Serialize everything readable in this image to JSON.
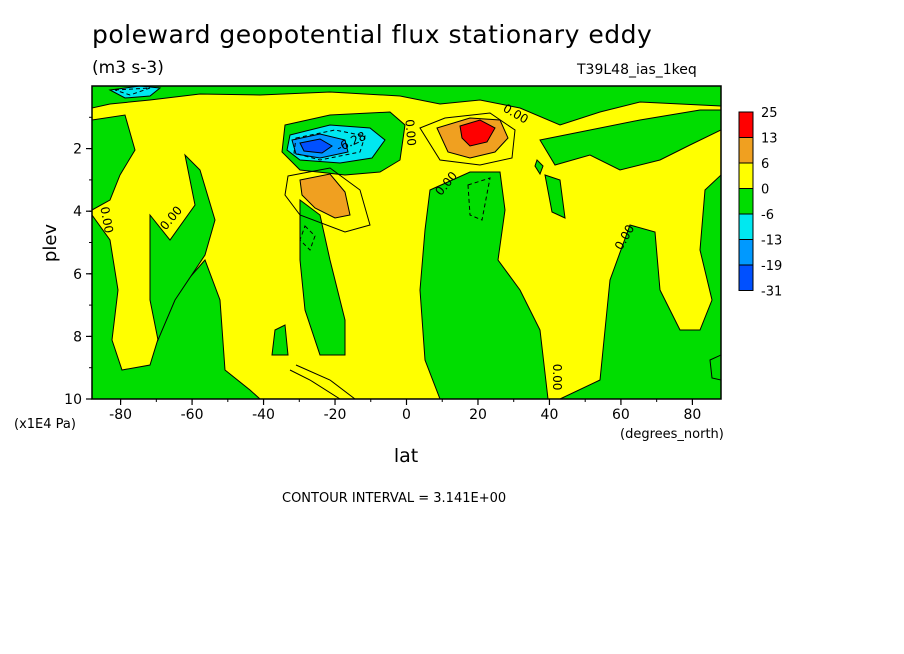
{
  "header": {
    "title": "poleward geopotential flux stationary eddy",
    "units": "(m3 s-3)",
    "dataset": "T39L48_ias_1keq"
  },
  "footer": {
    "contour_interval": "CONTOUR INTERVAL = 3.141E+00"
  },
  "colors": {
    "red": "#ff0000",
    "orange": "#f0a020",
    "yellow": "#ffff00",
    "green": "#00dd00",
    "cyan": "#00e8f0",
    "lightblue": "#0099ff",
    "blue": "#0050ff"
  },
  "chart_data": {
    "type": "heatmap",
    "title": "poleward geopotential flux stationary eddy",
    "xlabel": "lat",
    "x_unit_label": "(degrees_north)",
    "ylabel": "plev",
    "y_unit_label": "(x1E4 Pa)",
    "xlim": [
      -88,
      88
    ],
    "ylim": [
      0,
      10
    ],
    "y_inverted": true,
    "x_ticks": [
      -80,
      -60,
      -40,
      -20,
      0,
      20,
      40,
      60,
      80
    ],
    "y_ticks": [
      2,
      4,
      6,
      8,
      10
    ],
    "colorbar": {
      "levels": [
        "25",
        "13",
        "6",
        "0",
        "-6",
        "-13",
        "-19",
        "-31"
      ],
      "colors": [
        "#ff0000",
        "#f0a020",
        "#ffff00",
        "#00dd00",
        "#00e8f0",
        "#0099ff",
        "#0050ff"
      ]
    },
    "contour_labels": [
      {
        "text": "0.00",
        "lat": -85,
        "plev": 4.3,
        "angle": 80
      },
      {
        "text": "0.00",
        "lat": -65,
        "plev": 4.3,
        "angle": -50
      },
      {
        "text": "0.00",
        "lat": 0,
        "plev": 1.5,
        "angle": 85
      },
      {
        "text": "-6.28",
        "lat": -15,
        "plev": 1.9,
        "angle": -25
      },
      {
        "text": "0.00",
        "lat": 30,
        "plev": 1.0,
        "angle": 30
      },
      {
        "text": "0.00",
        "lat": 12,
        "plev": 3.2,
        "angle": -50
      },
      {
        "text": "0.00",
        "lat": 62,
        "plev": 4.9,
        "angle": -60
      },
      {
        "text": "0.00",
        "lat": 41,
        "plev": 9.3,
        "angle": 90
      }
    ],
    "regions": [
      {
        "value": "negative",
        "color": "green",
        "desc": "background band near top",
        "lat": [
          -88,
          88
        ],
        "plev": [
          0,
          0.5
        ]
      },
      {
        "value": "positive",
        "color": "orange",
        "center_lat": 20,
        "center_plev": 1.6
      },
      {
        "value": "max",
        "color": "red",
        "center_lat": 19,
        "center_plev": 1.5
      },
      {
        "value": "min",
        "color": "blue",
        "center_lat": -25,
        "center_plev": 2.0
      },
      {
        "value": "positive",
        "color": "orange",
        "center_lat": -25,
        "center_plev": 3.4
      }
    ]
  }
}
